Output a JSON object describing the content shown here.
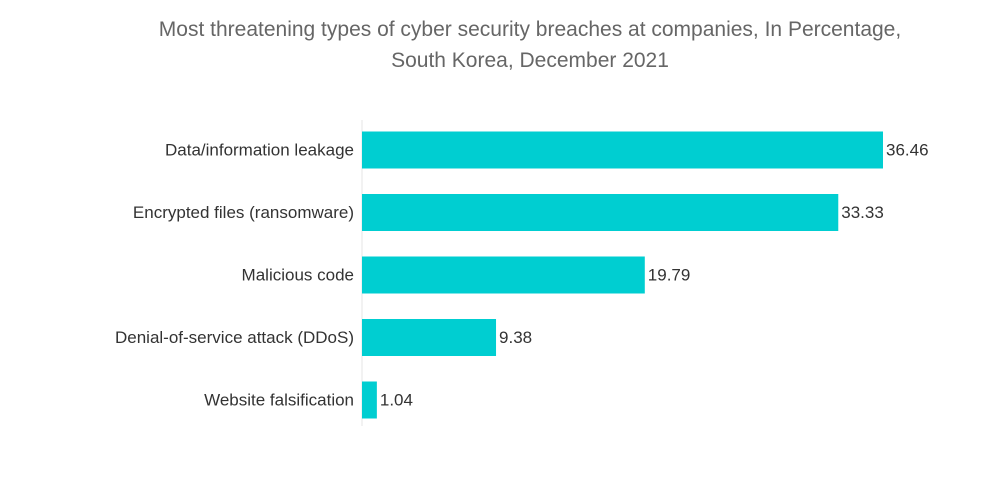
{
  "chart_data": {
    "type": "bar",
    "orientation": "horizontal",
    "title": "Most threatening types of cyber security breaches at companies, In Percentage,",
    "subtitle": "South Korea, December 2021",
    "categories": [
      "Data/information leakage",
      "Encrypted files (ransomware)",
      "Malicious code",
      "Denial-of-service attack (DDoS)",
      "Website falsification"
    ],
    "values": [
      36.46,
      33.33,
      19.79,
      9.38,
      1.04
    ],
    "value_labels": [
      "36.46",
      "33.33",
      "19.79",
      "9.38",
      "1.04"
    ],
    "xlabel": "",
    "ylabel": "",
    "xlim": [
      0,
      36.46
    ],
    "grid": false,
    "legend": "none",
    "bar_color": "#00CED1"
  }
}
